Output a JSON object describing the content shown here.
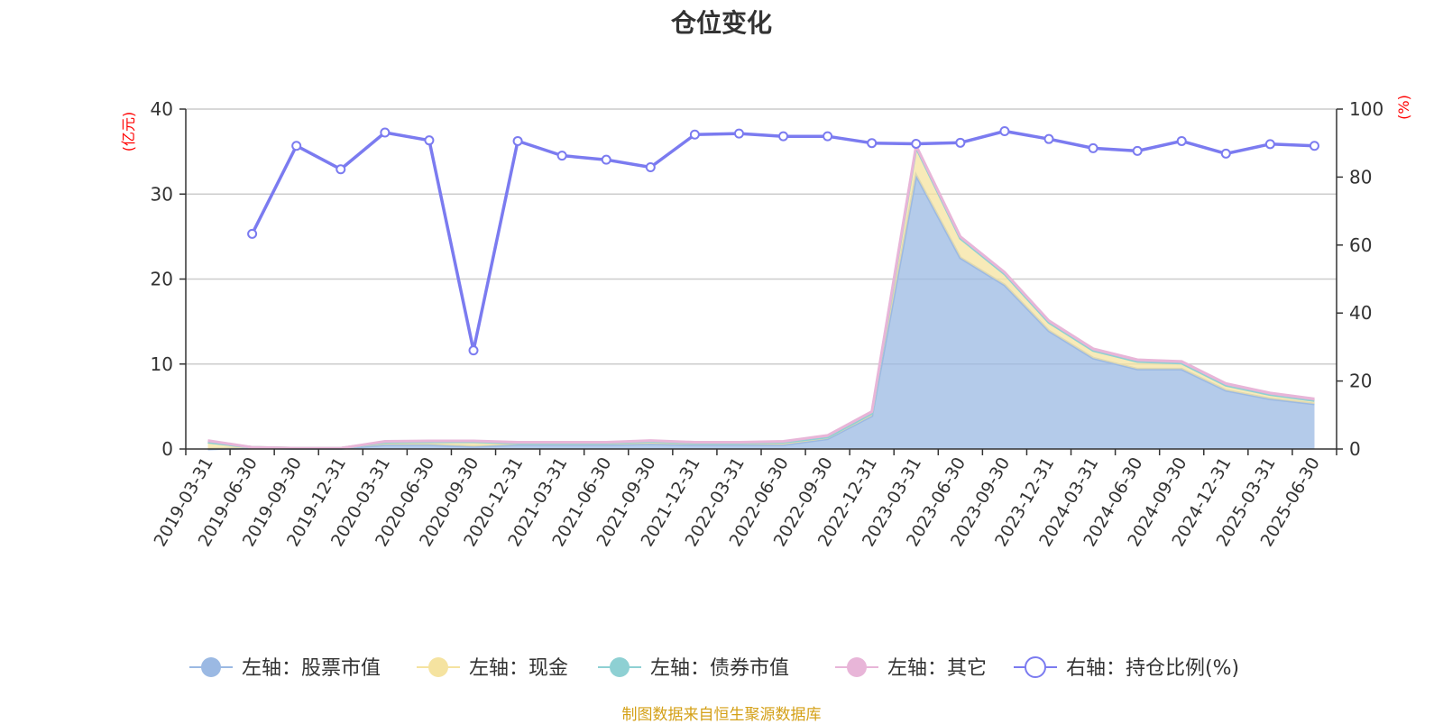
{
  "chart_data": {
    "type": "area",
    "title": "仓位变化",
    "source_note": "制图数据来自恒生聚源数据库",
    "left_unit": "(亿元)",
    "right_unit": "(%)",
    "categories": [
      "2019-03-31",
      "2019-06-30",
      "2019-09-30",
      "2019-12-31",
      "2020-03-31",
      "2020-06-30",
      "2020-09-30",
      "2020-12-31",
      "2021-03-31",
      "2021-06-30",
      "2021-09-30",
      "2021-12-31",
      "2022-03-31",
      "2022-06-30",
      "2022-09-30",
      "2022-12-31",
      "2023-03-31",
      "2023-06-30",
      "2023-09-30",
      "2023-12-31",
      "2024-03-31",
      "2024-06-30",
      "2024-09-30",
      "2024-12-31",
      "2025-03-31",
      "2025-06-30"
    ],
    "left_axis": {
      "min": 0,
      "max": 40,
      "ticks": [
        0,
        10,
        20,
        30,
        40
      ]
    },
    "right_axis": {
      "min": 0,
      "max": 100,
      "ticks": [
        0,
        20,
        40,
        60,
        80,
        100
      ]
    },
    "grid": true,
    "legend_position": "bottom",
    "series": [
      {
        "name": "左轴：股票市值",
        "axis": "left",
        "stacked": true,
        "color": "#9bb9e3",
        "values": [
          0.0,
          0.15,
          0.05,
          0.05,
          0.5,
          0.5,
          0.3,
          0.5,
          0.5,
          0.5,
          0.6,
          0.5,
          0.5,
          0.5,
          1.2,
          3.9,
          32.2,
          22.5,
          19.3,
          13.9,
          10.7,
          9.4,
          9.4,
          6.9,
          5.9,
          5.3
        ]
      },
      {
        "name": "左轴：现金",
        "axis": "left",
        "stacked": true,
        "color": "#f5e3a0",
        "values": [
          0.8,
          0.05,
          0.05,
          0.05,
          0.3,
          0.35,
          0.55,
          0.2,
          0.2,
          0.2,
          0.3,
          0.2,
          0.2,
          0.3,
          0.2,
          0.3,
          3.3,
          2.3,
          1.3,
          1.0,
          0.9,
          0.9,
          0.7,
          0.6,
          0.5,
          0.4
        ]
      },
      {
        "name": "左轴：债券市值",
        "axis": "left",
        "stacked": true,
        "color": "#8ed0d3",
        "values": [
          0,
          0,
          0,
          0,
          0,
          0,
          0,
          0,
          0,
          0,
          0,
          0,
          0,
          0,
          0,
          0,
          0,
          0,
          0,
          0,
          0,
          0,
          0,
          0,
          0,
          0
        ]
      },
      {
        "name": "左轴：其它",
        "axis": "left",
        "stacked": true,
        "color": "#e8b5d8",
        "values": [
          0.2,
          0.0,
          0.0,
          0.0,
          0.1,
          0.1,
          0.1,
          0.1,
          0.1,
          0.1,
          0.1,
          0.1,
          0.1,
          0.1,
          0.2,
          0.2,
          0.2,
          0.2,
          0.2,
          0.2,
          0.2,
          0.2,
          0.2,
          0.2,
          0.2,
          0.2
        ]
      },
      {
        "name": "右轴：持仓比例(%)",
        "axis": "right",
        "stacked": false,
        "color": "#7b7bf0",
        "values": [
          null,
          63.3,
          89.2,
          82.3,
          93.1,
          90.8,
          29.0,
          90.6,
          86.3,
          85.1,
          82.9,
          92.5,
          92.8,
          92.0,
          92.0,
          90.0,
          89.8,
          90.1,
          93.5,
          91.2,
          88.5,
          87.7,
          90.6,
          86.9,
          89.7,
          89.2
        ]
      }
    ]
  }
}
